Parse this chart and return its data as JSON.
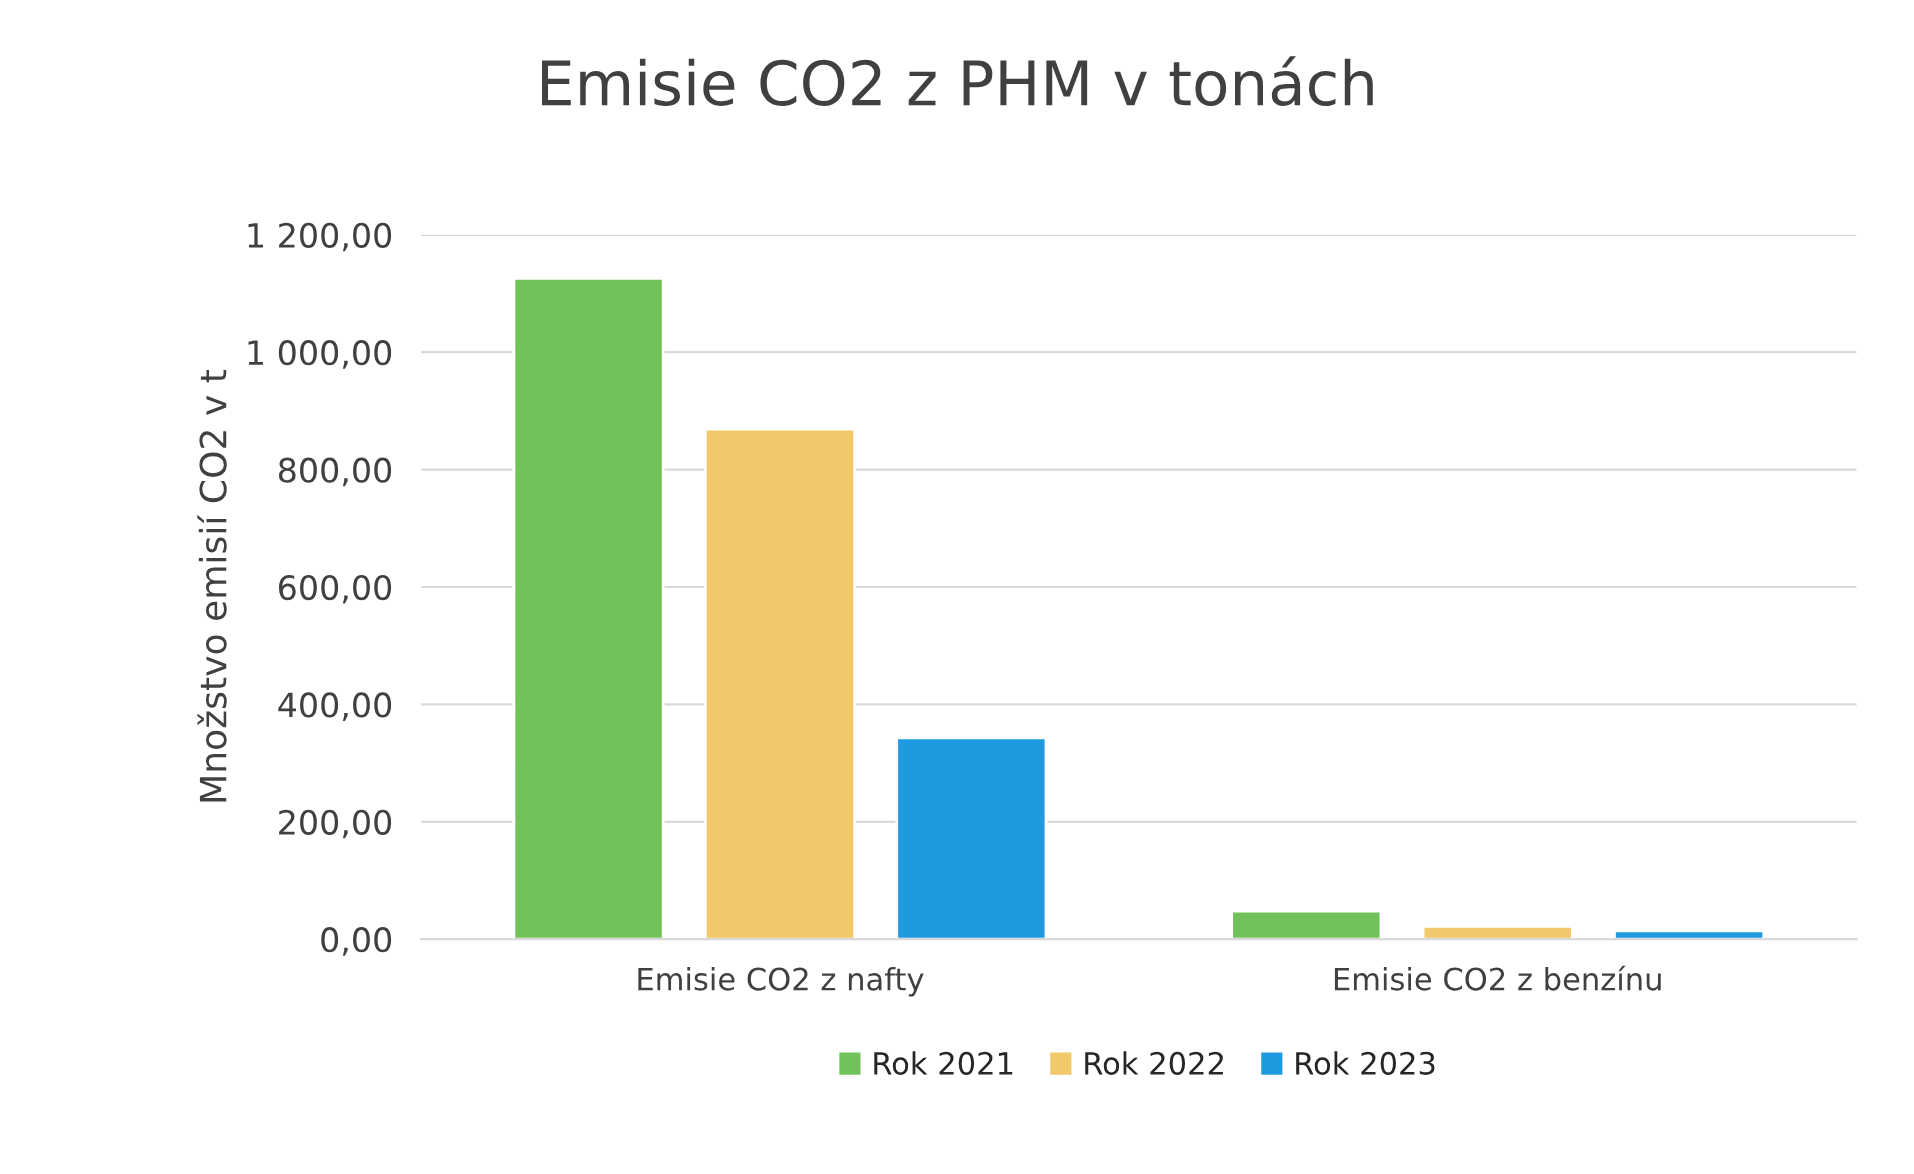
{
  "chart_data": {
    "type": "bar",
    "title": "Emisie CO2 z PHM v tonách",
    "ylabel": "Množstvo emisií CO2 v t",
    "categories": [
      "Emisie CO2 z nafty",
      "Emisie CO2 z benzínu"
    ],
    "series": [
      {
        "name": "Rok 2021",
        "color": "#72c25c",
        "values": [
          1126,
          48
        ]
      },
      {
        "name": "Rok 2022",
        "color": "#f2c96a",
        "values": [
          869,
          22
        ]
      },
      {
        "name": "Rok 2023",
        "color": "#1f9ae0",
        "values": [
          343,
          14
        ]
      }
    ],
    "ylim": [
      0,
      1200
    ],
    "yticks": [
      {
        "value": 0,
        "label": "0,00"
      },
      {
        "value": 200,
        "label": "200,00"
      },
      {
        "value": 400,
        "label": "400,00"
      },
      {
        "value": 600,
        "label": "600,00"
      },
      {
        "value": 800,
        "label": "800,00"
      },
      {
        "value": 1000,
        "label": "1 000,00"
      },
      {
        "value": 1200,
        "label": "1 200,00"
      }
    ],
    "grid": "y",
    "legend": "bottom"
  }
}
